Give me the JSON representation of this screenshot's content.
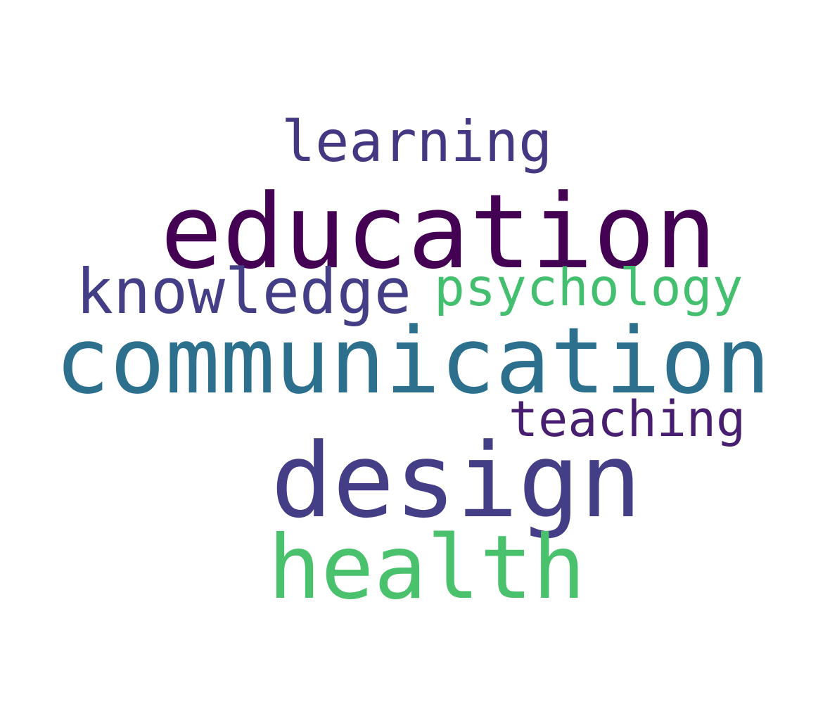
{
  "background_color": "#ffffff",
  "words": {
    "learning": {
      "text": "learning",
      "color": "#453781"
    },
    "education": {
      "text": "education",
      "color": "#440154"
    },
    "knowledge": {
      "text": "knowledge",
      "color": "#433e85"
    },
    "psychology": {
      "text": "psychology",
      "color": "#44bf70"
    },
    "communication": {
      "text": "communication",
      "color": "#2d708e"
    },
    "teaching": {
      "text": "teaching",
      "color": "#481f70"
    },
    "design": {
      "text": "design",
      "color": "#433e85"
    },
    "health": {
      "text": "health",
      "color": "#4ac16d"
    }
  }
}
